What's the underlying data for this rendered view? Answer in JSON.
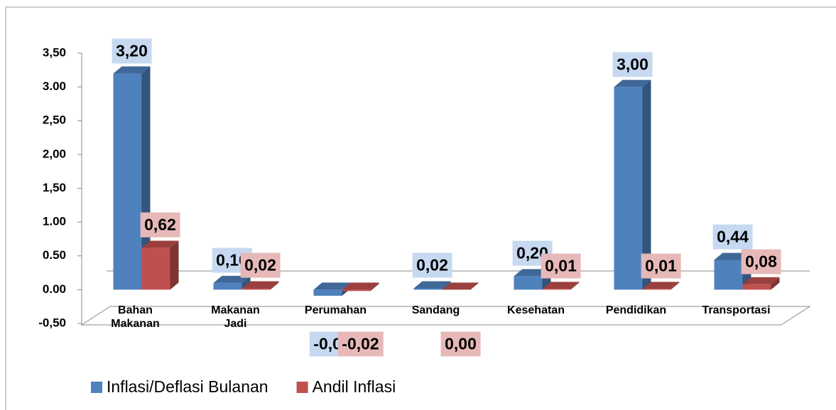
{
  "chart_data": {
    "type": "bar3d",
    "categories": [
      "Bahan Makanan",
      "Makanan Jadi",
      "Perumahan",
      "Sandang",
      "Kesehatan",
      "Pendidikan",
      "Transportasi"
    ],
    "series": [
      {
        "name": "Inflasi/Deflasi Bulanan",
        "color": "#4f81bd",
        "label_bg": "#c6d9f1",
        "values": [
          3.2,
          0.1,
          -0.09,
          0.02,
          0.2,
          3.0,
          0.44
        ],
        "value_labels": [
          "3,20",
          "0,10",
          "-0,09",
          "0,02",
          "0,20",
          "3,00",
          "0,44"
        ]
      },
      {
        "name": "Andil Inflasi",
        "color": "#c0504d",
        "label_bg": "#e6b9b8",
        "values": [
          0.62,
          0.02,
          -0.02,
          0,
          0.01,
          0.01,
          0.08
        ],
        "value_labels": [
          "0,62",
          "0,02",
          "-0,02",
          "0,00",
          "0,01",
          "0,01",
          "0,08"
        ]
      }
    ],
    "ylim": [
      -0.5,
      3.5
    ],
    "yticks": [
      {
        "value": -0.5,
        "label": "-0,50"
      },
      {
        "value": 0,
        "label": "0.00"
      },
      {
        "value": 0.5,
        "label": "0.50"
      },
      {
        "value": 1,
        "label": "1.00"
      },
      {
        "value": 1.5,
        "label": "1,50"
      },
      {
        "value": 2,
        "label": "2,00"
      },
      {
        "value": 2.5,
        "label": "2,50"
      },
      {
        "value": 3,
        "label": "3.00"
      },
      {
        "value": 3.5,
        "label": "3,50"
      }
    ],
    "legend": "bottom-left"
  }
}
